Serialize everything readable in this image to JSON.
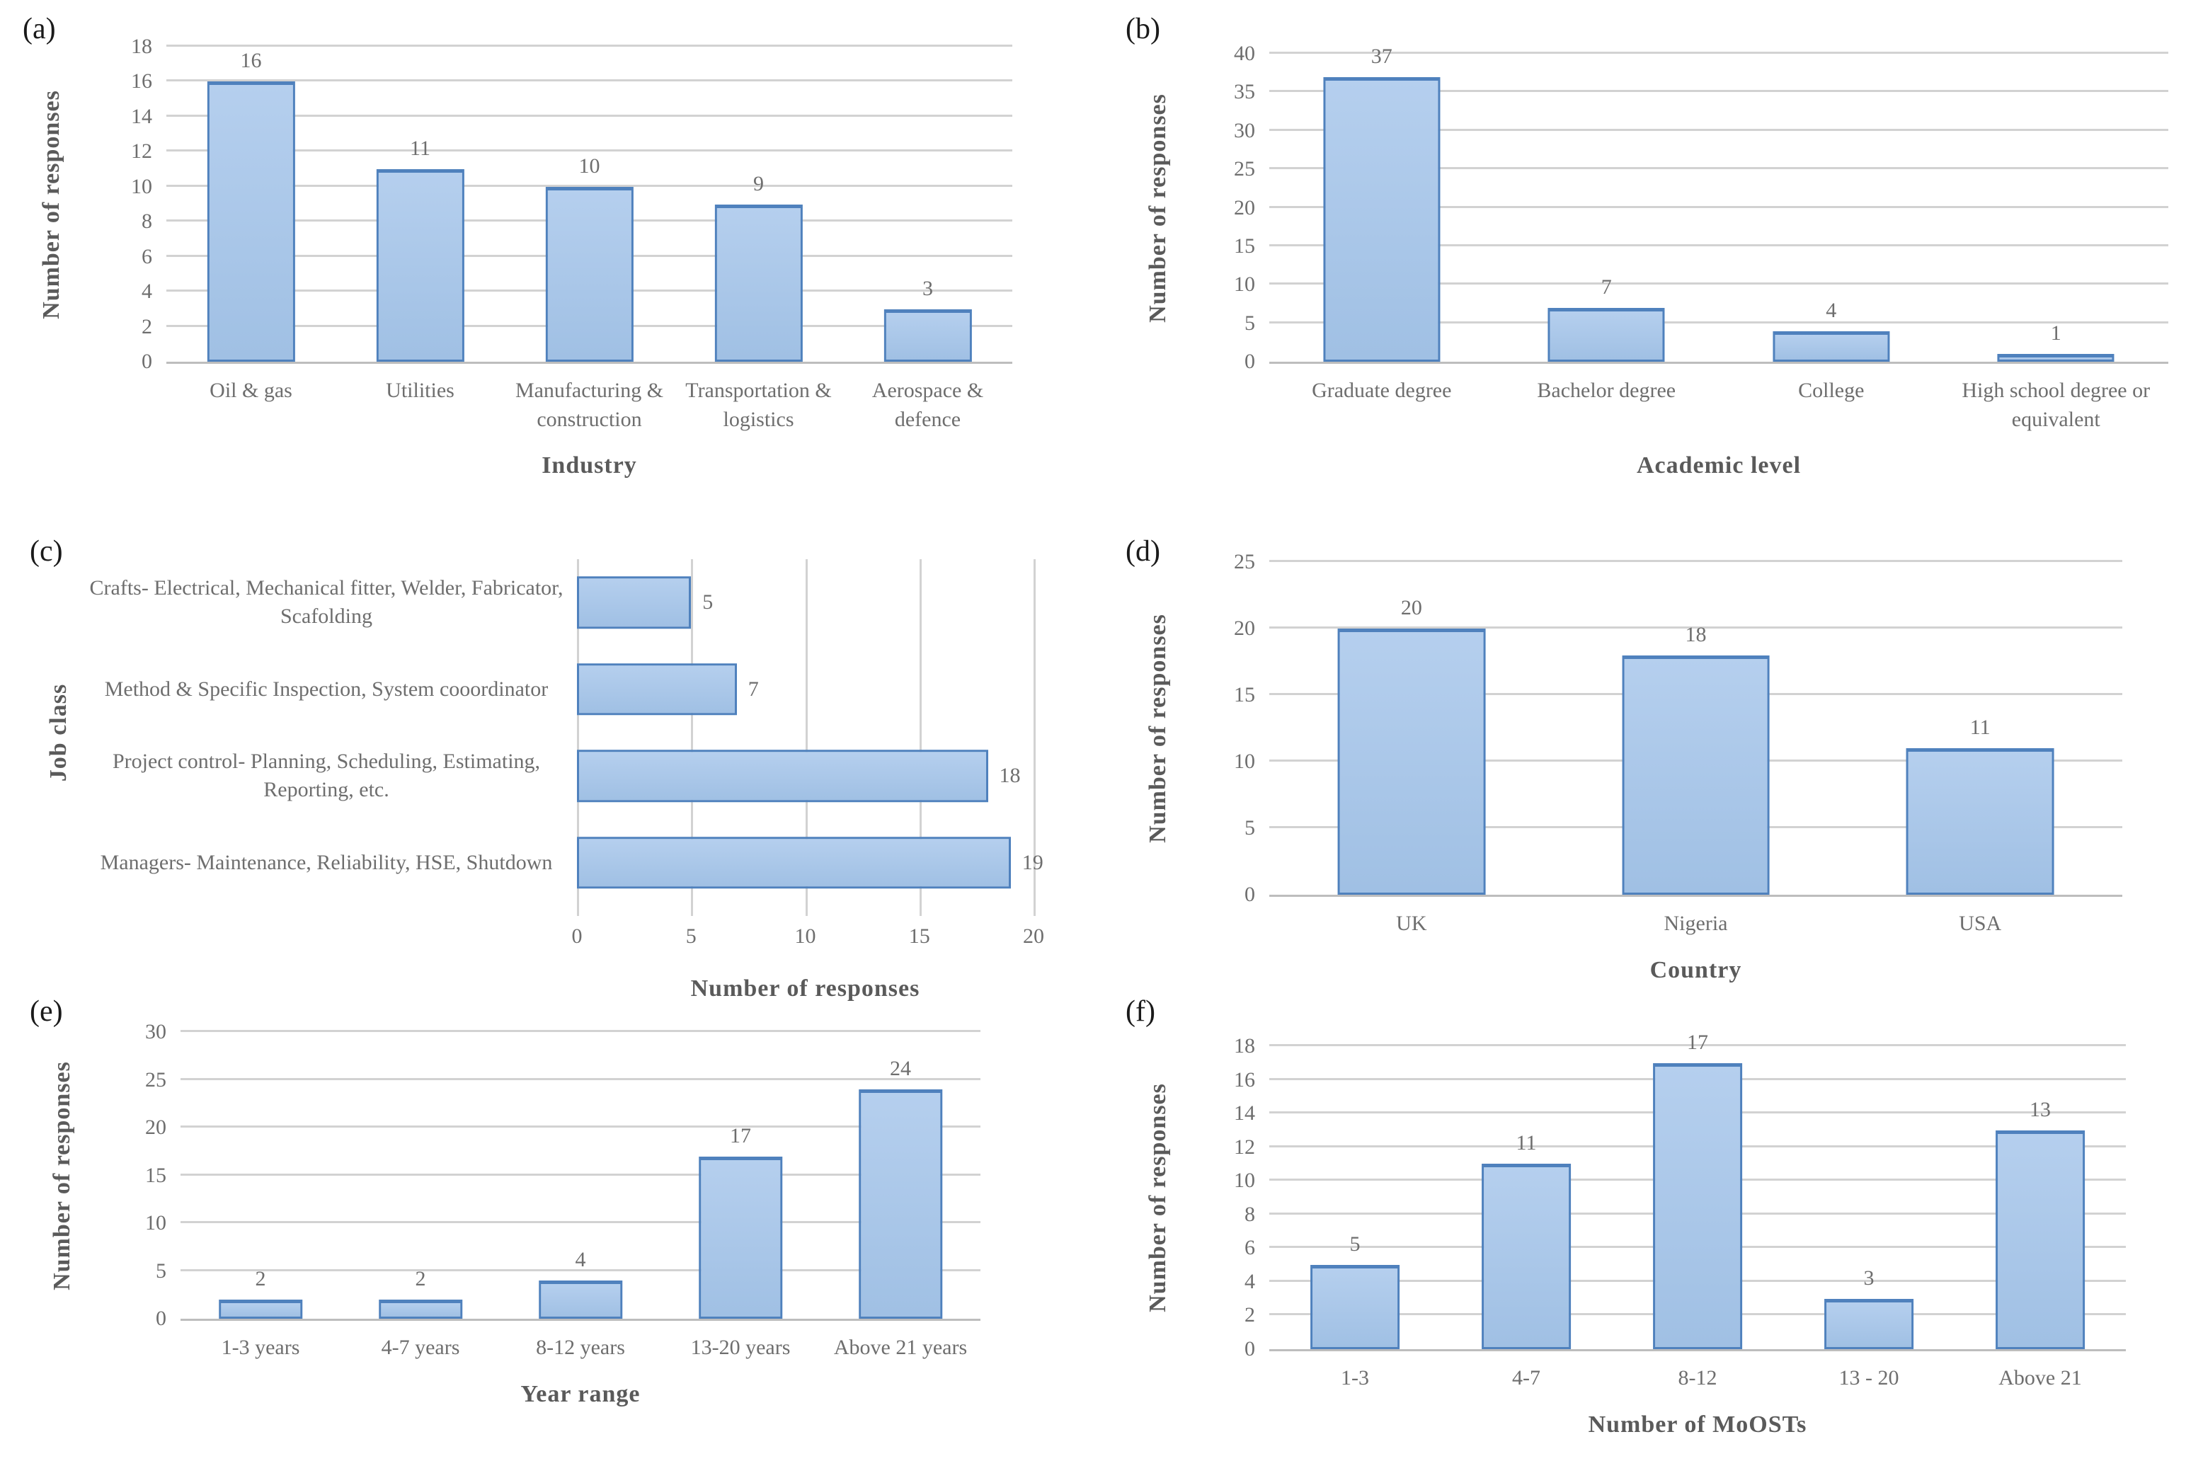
{
  "figure": {
    "background": "#ffffff",
    "panel_labels": [
      "(a)",
      "(b)",
      "(c)",
      "(d)",
      "(e)",
      "(f)"
    ]
  },
  "style": {
    "bar_fill_top": "#b5cfee",
    "bar_fill_bottom": "#a0c0e4",
    "bar_border": "#4f81bd",
    "gridline": "#d2d2d2",
    "axis_line": "#bdbdbd",
    "tick_text": "#6e6e6e",
    "axis_title_text": "#5a5a5a"
  },
  "chart_data": [
    {
      "panel_label": "(a)",
      "type": "bar",
      "orientation": "vertical",
      "ylabel": "Number of responses",
      "xlabel": "Industry",
      "categories": [
        "Oil & gas",
        "Utilities",
        "Manufacturing & construction",
        "Transportation & logistics",
        "Aerospace & defence"
      ],
      "values": [
        16,
        11,
        10,
        9,
        3
      ],
      "ymax": 18,
      "ystep": 2,
      "yticks": [
        "0",
        "2",
        "4",
        "6",
        "8",
        "10",
        "12",
        "14",
        "16",
        "18"
      ],
      "grid": "horizontal",
      "legend": "none"
    },
    {
      "panel_label": "(b)",
      "type": "bar",
      "orientation": "vertical",
      "ylabel": "Number of responses",
      "xlabel": "Academic level",
      "categories": [
        "Graduate degree",
        "Bachelor degree",
        "College",
        "High school degree or equivalent"
      ],
      "values": [
        37,
        7,
        4,
        1
      ],
      "ymax": 40,
      "ystep": 5,
      "yticks": [
        "0",
        "5",
        "10",
        "15",
        "20",
        "25",
        "30",
        "35",
        "40"
      ],
      "grid": "horizontal",
      "legend": "none"
    },
    {
      "panel_label": "(c)",
      "type": "bar",
      "orientation": "horizontal",
      "ylabel": "Job class",
      "xlabel": "Number of responses",
      "categories": [
        "Crafts- Electrical, Mechanical fitter, Welder, Fabricator, Scafolding",
        "Method & Specific Inspection, System cooordinator",
        "Project control- Planning, Scheduling, Estimating, Reporting, etc.",
        "Managers- Maintenance, Reliability, HSE, Shutdown"
      ],
      "values": [
        5,
        7,
        18,
        19
      ],
      "xmax": 20,
      "xstep": 5,
      "xticks": [
        "0",
        "5",
        "10",
        "15",
        "20"
      ],
      "grid": "vertical",
      "legend": "none"
    },
    {
      "panel_label": "(d)",
      "type": "bar",
      "orientation": "vertical",
      "ylabel": "Number of responses",
      "xlabel": "Country",
      "categories": [
        "UK",
        "Nigeria",
        "USA"
      ],
      "values": [
        20,
        18,
        11
      ],
      "ymax": 25,
      "ystep": 5,
      "yticks": [
        "0",
        "5",
        "10",
        "15",
        "20",
        "25"
      ],
      "grid": "horizontal",
      "legend": "none"
    },
    {
      "panel_label": "(e)",
      "type": "bar",
      "orientation": "vertical",
      "ylabel": "Number of responses",
      "xlabel": "Year range",
      "categories": [
        "1-3 years",
        "4-7 years",
        "8-12 years",
        "13-20 years",
        "Above 21 years"
      ],
      "values": [
        2,
        2,
        4,
        17,
        24
      ],
      "ymax": 30,
      "ystep": 5,
      "yticks": [
        "0",
        "5",
        "10",
        "15",
        "20",
        "25",
        "30"
      ],
      "grid": "horizontal",
      "legend": "none"
    },
    {
      "panel_label": "(f)",
      "type": "bar",
      "orientation": "vertical",
      "ylabel": "Number of responses",
      "xlabel": "Number of MoOSTs",
      "categories": [
        "1-3",
        "4-7",
        "8-12",
        "13 - 20",
        "Above 21"
      ],
      "values": [
        5,
        11,
        17,
        3,
        13
      ],
      "ymax": 18,
      "ystep": 2,
      "yticks": [
        "0",
        "2",
        "4",
        "6",
        "8",
        "10",
        "12",
        "14",
        "16",
        "18"
      ],
      "grid": "horizontal",
      "legend": "none"
    }
  ]
}
